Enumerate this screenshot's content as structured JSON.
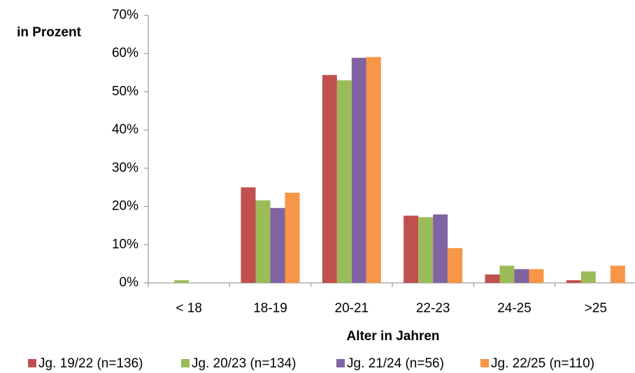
{
  "chart_data": {
    "type": "bar",
    "title": "",
    "ylabel": "in Prozent",
    "xlabel": "Alter in Jahren",
    "categories": [
      "< 18",
      "18-19",
      "20-21",
      "22-23",
      "24-25",
      ">25"
    ],
    "ylim": [
      0,
      70
    ],
    "yticks": [
      "0%",
      "10%",
      "20%",
      "30%",
      "40%",
      "50%",
      "60%",
      "70%"
    ],
    "grid": false,
    "legend_position": "bottom",
    "series": [
      {
        "name": "Jg. 19/22 (n=136)",
        "color": "#C0504D",
        "values": [
          0,
          25.0,
          54.4,
          17.6,
          2.2,
          0.7
        ]
      },
      {
        "name": "Jg. 20/23 (n=134)",
        "color": "#9BBB59",
        "values": [
          0.7,
          21.6,
          53.0,
          17.2,
          4.5,
          3.0
        ]
      },
      {
        "name": "Jg. 21/24 (n=56)",
        "color": "#8064A2",
        "values": [
          0,
          19.6,
          58.9,
          17.9,
          3.6,
          0
        ]
      },
      {
        "name": "Jg. 22/25 (n=110)",
        "color": "#F79646",
        "values": [
          0,
          23.6,
          59.1,
          9.1,
          3.6,
          4.5
        ]
      }
    ]
  }
}
